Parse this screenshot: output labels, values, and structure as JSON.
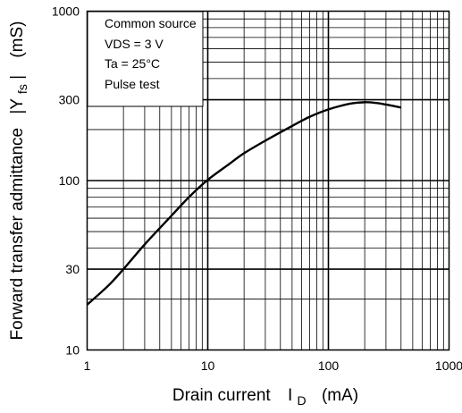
{
  "chart_data": {
    "type": "line",
    "xscale": "log",
    "yscale": "log",
    "xlim": [
      1,
      1000
    ],
    "ylim": [
      10,
      1000
    ],
    "grid": true,
    "x_ticks": [
      1,
      10,
      100,
      1000
    ],
    "x_tick_labels": [
      "1",
      "10",
      "100",
      "1000"
    ],
    "y_ticks": [
      10,
      30,
      100,
      300,
      1000
    ],
    "y_tick_labels": [
      "10",
      "30",
      "100",
      "300",
      "1000"
    ],
    "xlabel": {
      "main": "Drain current",
      "symbol": "I",
      "subscript": "D",
      "unit": "(mA)"
    },
    "ylabel": {
      "main": "Forward transfer admittance",
      "symbol": "|Y",
      "subscript": "fs",
      "close": "|",
      "unit": "(mS)"
    },
    "conditions": [
      "Common source",
      "VDS = 3 V",
      "Ta = 25°C",
      "Pulse test"
    ],
    "conditions_placement": "top-left",
    "series": [
      {
        "points": [
          [
            1,
            18.5
          ],
          [
            1.5,
            24
          ],
          [
            2,
            30
          ],
          [
            3,
            42
          ],
          [
            5,
            62
          ],
          [
            7,
            80
          ],
          [
            10,
            101
          ],
          [
            15,
            125
          ],
          [
            20,
            145
          ],
          [
            30,
            172
          ],
          [
            50,
            210
          ],
          [
            70,
            238
          ],
          [
            100,
            263
          ],
          [
            150,
            284
          ],
          [
            200,
            290
          ],
          [
            250,
            287
          ],
          [
            300,
            281
          ],
          [
            400,
            270
          ]
        ]
      }
    ]
  }
}
